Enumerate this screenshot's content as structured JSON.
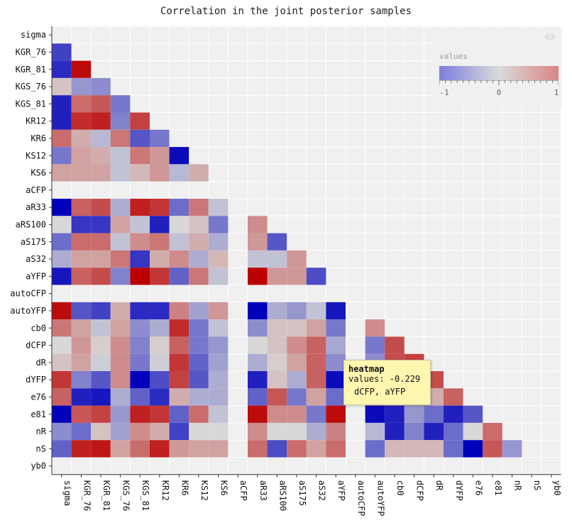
{
  "title": "Correlation in the joint posterior samples",
  "chart_data": {
    "type": "heatmap",
    "title": "Correlation in the joint posterior samples",
    "variables": [
      "sigma",
      "KGR_76",
      "KGR_81",
      "KGS_76",
      "KGS_81",
      "KR12",
      "KR6",
      "KS12",
      "KS6",
      "aCFP",
      "aR33",
      "aRS100",
      "aS175",
      "aS32",
      "aYFP",
      "autoCFP",
      "autoYFP",
      "cb0",
      "dCFP",
      "dR",
      "dYFP",
      "e76",
      "e81",
      "nR",
      "nS",
      "yb0"
    ],
    "matrix_lower_triangle": [
      [],
      [
        -0.7
      ],
      [
        -0.8,
        0.95
      ],
      [
        0.1,
        -0.3,
        -0.35
      ],
      [
        -0.85,
        0.5,
        0.6,
        -0.45
      ],
      [
        -0.85,
        0.8,
        0.85,
        -0.4,
        0.7
      ],
      [
        0.5,
        0.2,
        -0.15,
        0.45,
        -0.6,
        -0.45
      ],
      [
        -0.45,
        0.25,
        0.2,
        -0.1,
        0.45,
        0.3,
        -0.95
      ],
      [
        0.25,
        0.25,
        0.25,
        -0.1,
        0.15,
        0.3,
        -0.15,
        0.2
      ],
      [
        null,
        null,
        null,
        null,
        null,
        null,
        null,
        null,
        null
      ],
      [
        -1.0,
        0.55,
        0.65,
        -0.2,
        0.85,
        0.75,
        -0.5,
        0.45,
        -0.1,
        null
      ],
      [
        0.0,
        -0.75,
        -0.75,
        0.25,
        -0.1,
        -0.85,
        0.0,
        0.1,
        -0.45,
        null,
        0.35
      ],
      [
        -0.5,
        0.5,
        0.5,
        -0.1,
        0.35,
        0.45,
        -0.1,
        0.2,
        -0.2,
        null,
        0.3,
        -0.6
      ],
      [
        -0.2,
        0.25,
        0.25,
        0.45,
        -0.75,
        0.2,
        0.35,
        -0.2,
        0.15,
        null,
        -0.1,
        -0.1,
        0.3
      ],
      [
        -0.9,
        0.55,
        0.65,
        -0.4,
        1.0,
        0.75,
        -0.55,
        0.45,
        -0.1,
        null,
        1.0,
        0.3,
        0.3,
        -0.65
      ],
      [
        null,
        null,
        null,
        null,
        null,
        null,
        null,
        null,
        null,
        null,
        null,
        null,
        null,
        null,
        null
      ],
      [
        0.95,
        -0.6,
        -0.7,
        0.2,
        -0.8,
        -0.8,
        0.4,
        -0.25,
        0.3,
        null,
        -1.0,
        -0.2,
        -0.3,
        -0.1,
        -0.9,
        null
      ],
      [
        0.45,
        0.25,
        -0.1,
        0.25,
        -0.35,
        -0.2,
        0.8,
        -0.45,
        -0.1,
        null,
        -0.35,
        0.1,
        0.1,
        0.25,
        -0.45,
        null,
        0.35
      ],
      [
        0.0,
        0.3,
        0.05,
        0.35,
        -0.4,
        0.05,
        0.55,
        -0.45,
        -0.3,
        null,
        0.0,
        0.1,
        0.35,
        0.55,
        -0.229,
        null,
        -0.45,
        0.65
      ],
      [
        0.1,
        0.25,
        -0.05,
        0.35,
        -0.45,
        -0.05,
        0.75,
        -0.55,
        -0.25,
        null,
        -0.2,
        0.05,
        0.25,
        0.55,
        -0.35,
        null,
        -0.35,
        0.65,
        0.7
      ],
      [
        0.75,
        -0.4,
        -0.6,
        0.35,
        -1.0,
        -0.65,
        0.7,
        -0.6,
        -0.2,
        null,
        -0.85,
        0.1,
        -0.2,
        0.55,
        -0.95,
        null,
        0.75,
        0.55,
        0.55,
        0.65
      ],
      [
        0.55,
        -0.85,
        -0.9,
        -0.2,
        -0.55,
        -0.8,
        0.2,
        -0.2,
        -0.2,
        null,
        -0.55,
        0.6,
        -0.45,
        0.25,
        -0.5,
        null,
        0.35,
        0.3,
        0.4,
        0.2,
        0.55
      ],
      [
        -1.0,
        0.6,
        0.7,
        -0.3,
        0.85,
        0.75,
        -0.55,
        0.5,
        -0.1,
        null,
        0.95,
        0.35,
        0.35,
        -0.45,
        0.95,
        null,
        -0.95,
        -0.85,
        -0.3,
        -0.5,
        -0.85,
        -0.6
      ],
      [
        -0.35,
        -0.5,
        0.1,
        -0.25,
        0.35,
        0.2,
        -0.7,
        0.0,
        0.0,
        null,
        0.35,
        0.0,
        0.0,
        -0.2,
        0.4,
        null,
        -0.15,
        -0.85,
        -0.4,
        -0.85,
        -0.5,
        0.0,
        0.5
      ],
      [
        -0.55,
        0.85,
        0.9,
        0.25,
        0.5,
        0.85,
        0.3,
        0.25,
        0.25,
        null,
        0.5,
        -0.65,
        0.5,
        0.25,
        0.5,
        null,
        -0.5,
        0.15,
        0.15,
        0.15,
        -0.5,
        -1.0,
        0.6,
        -0.3
      ],
      [
        null,
        null,
        null,
        null,
        null,
        null,
        null,
        null,
        null,
        null,
        null,
        null,
        null,
        null,
        null,
        null,
        null,
        null,
        null,
        null,
        null,
        null,
        null,
        null,
        null
      ]
    ],
    "colorscale": {
      "min": -1,
      "mid": 0,
      "max": 1,
      "low_color": "#0000bb",
      "mid_color": "#d8d8d8",
      "high_color": "#bb0000"
    },
    "legend": {
      "title": "values",
      "ticks": [
        "-1",
        "0",
        "1"
      ],
      "placement": "top-right"
    }
  },
  "tooltip": {
    "series": "heatmap",
    "value_line": "values: -0.229",
    "pair_line": "dCFP, aYFP"
  }
}
